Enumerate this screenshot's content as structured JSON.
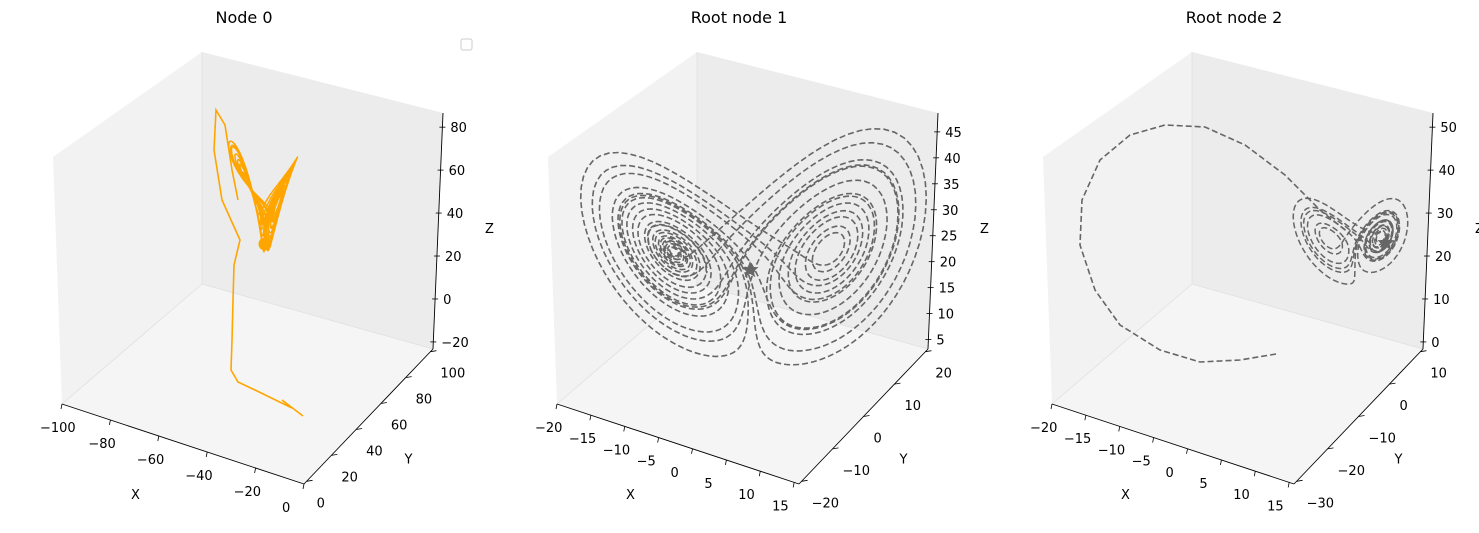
{
  "chart_data": [
    {
      "type": "line3d",
      "title": "Node 0",
      "xlabel": "X",
      "ylabel": "Y",
      "zlabel": "Z",
      "xticks": [
        "−100",
        "−80",
        "−60",
        "−40",
        "−20",
        "0"
      ],
      "yticks": [
        "0",
        "20",
        "40",
        "60",
        "80",
        "100"
      ],
      "zticks": [
        "−20",
        "0",
        "20",
        "40",
        "60",
        "80"
      ],
      "xlim": [
        -100,
        5
      ],
      "ylim": [
        0,
        105
      ],
      "zlim": [
        -30,
        90
      ],
      "legend": {
        "placement": "top-right",
        "entries": []
      },
      "series": [
        {
          "style": "solid",
          "color": "#ffa500",
          "marker": "circle",
          "description_points": [
            [
              -4,
              6,
              -30
            ],
            [
              -30,
              55,
              -10
            ],
            [
              -28,
              50,
              12
            ],
            [
              -30,
              50,
              45
            ],
            [
              -25,
              52,
              40
            ],
            [
              -40,
              45,
              55
            ],
            [
              -15,
              60,
              30
            ],
            [
              -10,
              45,
              25
            ],
            [
              -35,
              35,
              45
            ],
            [
              -30,
              50,
              30
            ]
          ]
        }
      ]
    },
    {
      "type": "line3d",
      "title": "Root node 1",
      "xlabel": "X",
      "ylabel": "Y",
      "zlabel": "Z",
      "xticks": [
        "−20",
        "−15",
        "−10",
        "−5",
        "0",
        "5",
        "10",
        "15"
      ],
      "yticks": [
        "−20",
        "−10",
        "0",
        "10",
        "20"
      ],
      "zticks": [
        "5",
        "10",
        "15",
        "20",
        "25",
        "30",
        "35",
        "40",
        "45"
      ],
      "xlim": [
        -21,
        18
      ],
      "ylim": [
        -25,
        25
      ],
      "zlim": [
        3,
        48
      ],
      "series": [
        {
          "style": "dashed",
          "color": "#666666",
          "marker": "star",
          "description_points": [
            [
              -9,
              -10,
              27
            ],
            [
              -16,
              -18,
              40
            ],
            [
              -14,
              -12,
              32
            ],
            [
              -8,
              -6,
              22
            ],
            [
              0,
              0,
              20
            ],
            [
              8,
              8,
              25
            ],
            [
              14,
              18,
              36
            ],
            [
              12,
              14,
              32
            ],
            [
              6,
              8,
              26
            ],
            [
              0,
              0,
              20
            ]
          ]
        }
      ]
    },
    {
      "type": "line3d",
      "title": "Root node 2",
      "xlabel": "X",
      "ylabel": "Y",
      "zlabel": "Z",
      "xticks": [
        "−20",
        "−15",
        "−10",
        "−5",
        "0",
        "5",
        "10",
        "15"
      ],
      "yticks": [
        "−30",
        "−20",
        "−10",
        "0",
        "10"
      ],
      "zticks": [
        "0",
        "10",
        "20",
        "30",
        "40",
        "50"
      ],
      "xlim": [
        -22,
        15
      ],
      "ylim": [
        -32,
        18
      ],
      "zlim": [
        -2,
        52
      ],
      "series": [
        {
          "style": "dashed",
          "color": "#666666",
          "marker": "star",
          "description_points": [
            [
              0,
              -10,
              2
            ],
            [
              -10,
              -18,
              15
            ],
            [
              -18,
              -20,
              35
            ],
            [
              -14,
              -16,
              48
            ],
            [
              -6,
              -6,
              44
            ],
            [
              6,
              4,
              32
            ],
            [
              12,
              8,
              27
            ],
            [
              8,
              6,
              22
            ],
            [
              4,
              2,
              24
            ],
            [
              10,
              6,
              26
            ]
          ]
        }
      ]
    }
  ]
}
